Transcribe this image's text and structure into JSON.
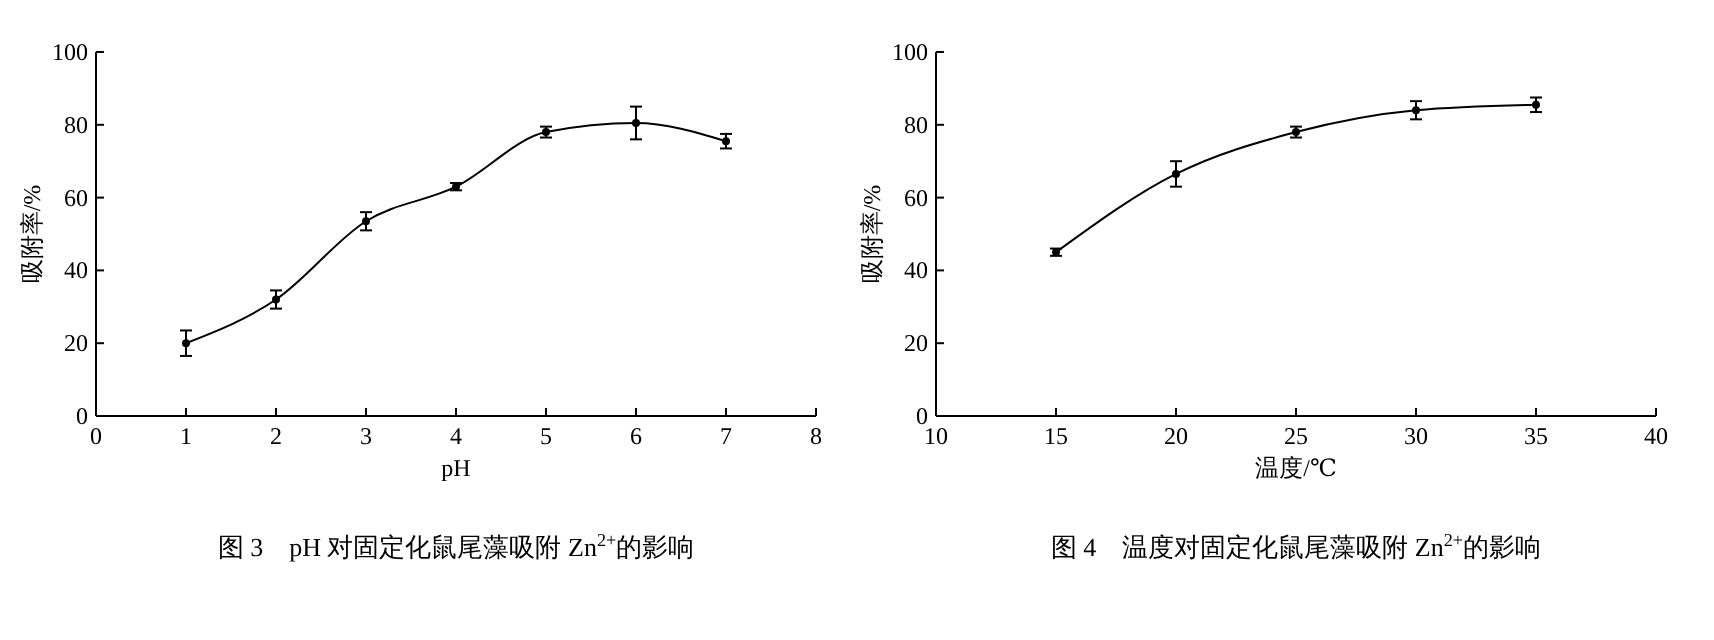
{
  "chart_data": [
    {
      "type": "line",
      "title": "图 3　pH 对固定化鼠尾藻吸附 Zn$^{2+}$的影响",
      "xlabel": "pH",
      "ylabel": "吸附率/%",
      "x": [
        1,
        2,
        3,
        4,
        5,
        6,
        7
      ],
      "values": [
        20,
        32,
        53.5,
        63,
        78,
        80.5,
        75.5
      ],
      "errors": [
        3.5,
        2.5,
        2.5,
        1,
        1.5,
        4.5,
        2
      ],
      "color": "#000000",
      "xlim": [
        0,
        8
      ],
      "xticks": [
        0,
        1,
        2,
        3,
        4,
        5,
        6,
        7,
        8
      ],
      "ylim": [
        0,
        100
      ],
      "yticks": [
        0,
        20,
        40,
        60,
        80,
        100
      ],
      "marker": "circle"
    },
    {
      "type": "line",
      "title": "图 4　温度对固定化鼠尾藻吸附 Zn$^{2+}$的影响",
      "xlabel": "温度/℃",
      "ylabel": "吸附率/%",
      "x": [
        15,
        20,
        25,
        30,
        35
      ],
      "values": [
        45,
        66.5,
        78,
        84,
        85.5
      ],
      "errors": [
        1,
        3.5,
        1.5,
        2.5,
        2
      ],
      "color": "#000000",
      "xlim": [
        10,
        40
      ],
      "xticks": [
        10,
        15,
        20,
        25,
        30,
        35,
        40
      ],
      "ylim": [
        0,
        100
      ],
      "yticks": [
        0,
        20,
        40,
        60,
        80,
        100
      ],
      "marker": "circle"
    }
  ]
}
